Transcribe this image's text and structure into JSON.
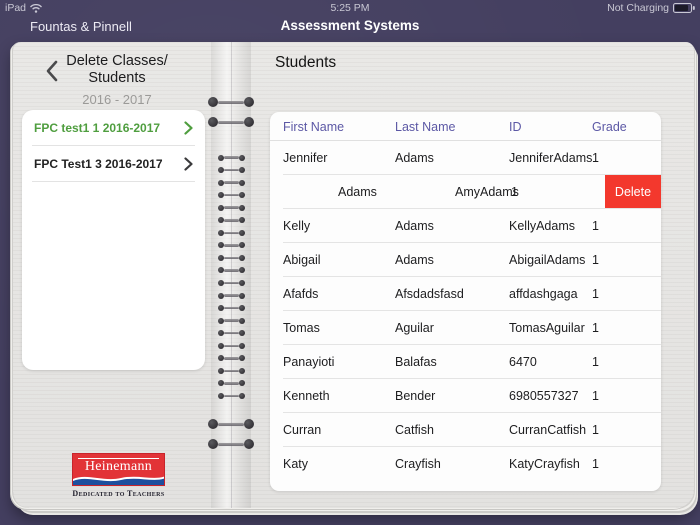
{
  "status_bar": {
    "device": "iPad",
    "time": "5:25 PM",
    "battery_status": "Not Charging"
  },
  "nav": {
    "app_title": "Fountas & Pinnell",
    "screen_title": "Assessment Systems"
  },
  "left_panel": {
    "title_line1": "Delete Classes/",
    "title_line2": "Students",
    "year": "2016 - 2017",
    "classes": [
      {
        "label": "FPC test1 1 2016-2017",
        "selected": true
      },
      {
        "label": "FPC Test1 3 2016-2017",
        "selected": false
      }
    ]
  },
  "students": {
    "title": "Students",
    "columns": [
      "First Name",
      "Last Name",
      "ID",
      "Grade"
    ],
    "rows": [
      {
        "first": "Jennifer",
        "last": "Adams",
        "id": "JenniferAdams",
        "grade": "1"
      },
      {
        "last": "Adams",
        "id": "AmyAdams",
        "grade": "1",
        "swiped": true,
        "delete_label": "Delete"
      },
      {
        "first": "Kelly",
        "last": "Adams",
        "id": "KellyAdams",
        "grade": "1"
      },
      {
        "first": "Abigail",
        "last": "Adams",
        "id": "AbigailAdams",
        "grade": "1"
      },
      {
        "first": "Afafds",
        "last": "Afsdadsfasd",
        "id": "affdashgaga",
        "grade": "1"
      },
      {
        "first": "Tomas",
        "last": "Aguilar",
        "id": "TomasAguilar",
        "grade": "1"
      },
      {
        "first": "Panayioti",
        "last": "Balafas",
        "id": "6470",
        "grade": "1"
      },
      {
        "first": "Kenneth",
        "last": "Bender",
        "id": "6980557327",
        "grade": "1"
      },
      {
        "first": "Curran",
        "last": "Catfish",
        "id": "CurranCatfish",
        "grade": "1"
      },
      {
        "first": "Katy",
        "last": "Crayfish",
        "id": "KatyCrayfish",
        "grade": "1"
      }
    ]
  },
  "logo": {
    "brand": "Heinemann",
    "tagline": "Dedicated to Teachers"
  },
  "colors": {
    "background": "#443f60",
    "column_header": "#5c58a5",
    "selected_class_green": "#4f9e3f",
    "delete_red": "#f3382d"
  }
}
